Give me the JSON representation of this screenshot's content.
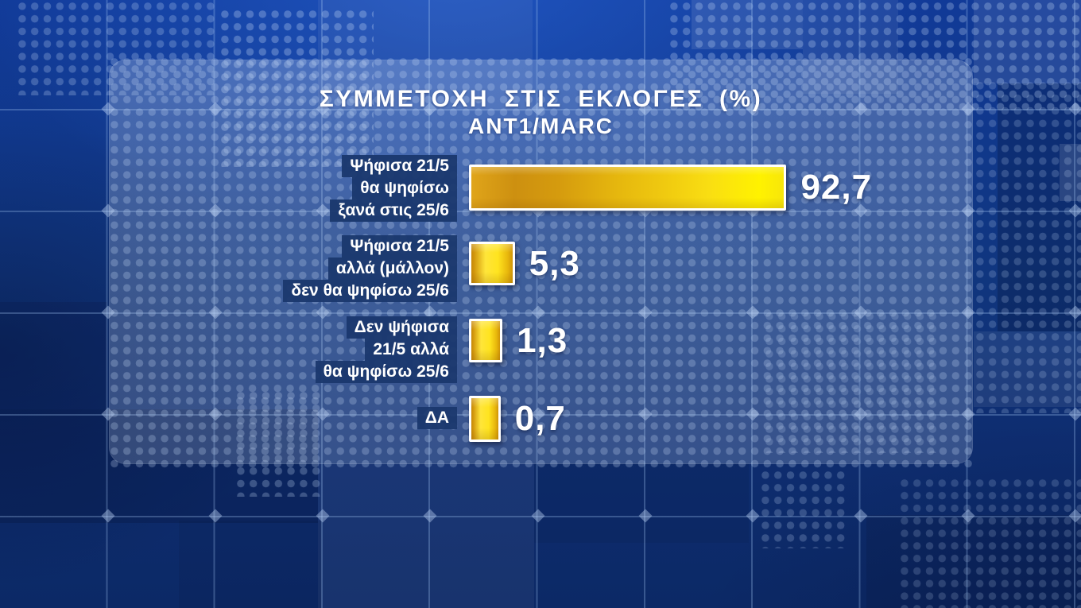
{
  "header": {
    "title": "ΣΥΜΜΕΤΟΧΗ ΣΤΙΣ ΕΚΛΟΓΕΣ (%)",
    "subtitle": "ANT1/MARC"
  },
  "chart_data": {
    "type": "bar",
    "orientation": "horizontal",
    "title": "ΣΥΜΜΕΤΟΧΗ ΣΤΙΣ ΕΚΛΟΓΕΣ (%)",
    "source": "ANT1/MARC",
    "categories": [
      "Ψήφισα 21/5 θα ψηφίσω ξανά στις 25/6",
      "Ψήφισα 21/5 αλλά (μάλλον) δεν θα ψηφίσω 25/6",
      "Δεν ψήφισα 21/5 αλλά θα ψηφίσω 25/6",
      "ΔΑ"
    ],
    "values": [
      92.7,
      5.3,
      1.3,
      0.7
    ],
    "value_labels": [
      "92,7",
      "5,3",
      "1,3",
      "0,7"
    ],
    "xlim": [
      0,
      100
    ],
    "decimal_separator": ",",
    "legend": "none",
    "grid": "off",
    "bar_color_start": "#cf9010",
    "bar_color_end": "#fff200"
  },
  "rows": [
    {
      "lines": [
        "Ψήφισα 21/5",
        "θα ψηφίσω",
        "ξανά στις 25/6"
      ],
      "value_label": "92,7"
    },
    {
      "lines": [
        "Ψήφισα 21/5",
        "αλλά (μάλλον)",
        "δεν θα ψηφίσω 25/6"
      ],
      "value_label": "5,3"
    },
    {
      "lines": [
        "Δεν ψήφισα",
        "21/5 αλλά",
        "θα ψηφίσω 25/6"
      ],
      "value_label": "1,3"
    },
    {
      "lines": [
        "ΔΑ"
      ],
      "value_label": "0,7"
    }
  ],
  "colors": {
    "background_blue": "#10367f",
    "panel_overlay": "rgba(205,220,242,0.24)",
    "label_box": "#1a386e",
    "bar_gold": "#ffe41f",
    "text": "#ffffff"
  }
}
